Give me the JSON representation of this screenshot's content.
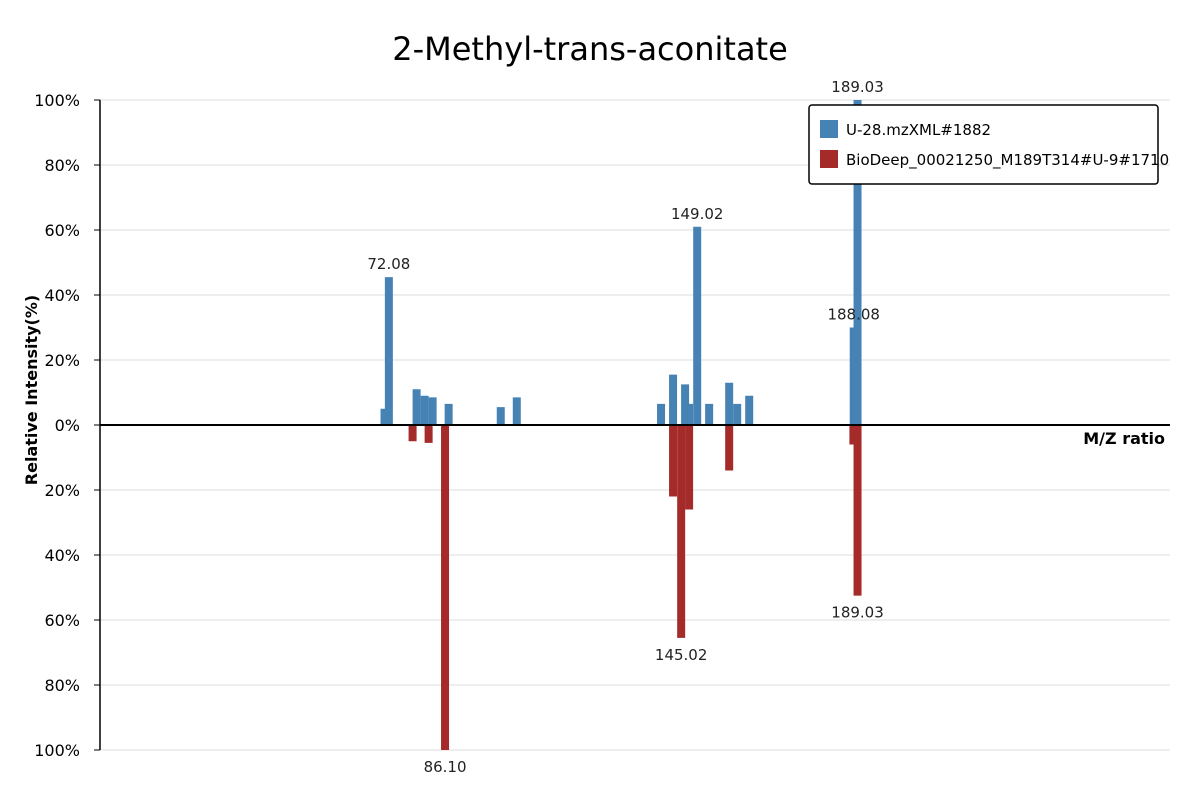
{
  "chart_data": {
    "type": "bar",
    "title": "2-Methyl-trans-aconitate",
    "xlabel": "M/Z ratio",
    "ylabel": "Relative Intensity(%)",
    "y_ticks_top": [
      "100%",
      "80%",
      "60%",
      "40%",
      "20%",
      "0%"
    ],
    "y_ticks_bottom": [
      "20%",
      "40%",
      "60%",
      "80%",
      "100%"
    ],
    "ylim": [
      -100,
      100
    ],
    "xlim": [
      0,
      267
    ],
    "grid": true,
    "legend_position": "top-right",
    "colors": {
      "top": "#4682B4",
      "bottom": "#A52A2A",
      "axis": "#000000",
      "grid": "#DCDCDC"
    },
    "series": [
      {
        "name": "U-28.mzXML#1882",
        "direction": "up",
        "mz": [
          71.0,
          72.08,
          79.0,
          81.0,
          83.0,
          87.0,
          100.0,
          104.0,
          140.0,
          143.0,
          146.0,
          147.0,
          149.02,
          152.0,
          157.0,
          159.0,
          162.0,
          188.08,
          189.03
        ],
        "intensity": [
          5,
          45.5,
          11,
          9,
          8.5,
          6.5,
          5.5,
          8.5,
          6.5,
          15.5,
          12.5,
          6.5,
          61,
          6.5,
          13,
          6.5,
          9,
          30,
          100
        ]
      },
      {
        "name": "BioDeep_00021250_M189T314#U-9#1710",
        "direction": "down",
        "mz": [
          78.0,
          86.1,
          82.0,
          143.0,
          145.02,
          147.0,
          157.0,
          188.0,
          189.03
        ],
        "intensity": [
          5,
          100,
          5.5,
          22,
          65.5,
          26,
          14,
          6,
          52.5
        ]
      }
    ],
    "peak_labels": [
      {
        "series": "U-28.mzXML#1882",
        "mz": 72.08,
        "text": "72.08"
      },
      {
        "series": "U-28.mzXML#1882",
        "mz": 149.02,
        "text": "149.02"
      },
      {
        "series": "U-28.mzXML#1882",
        "mz": 188.08,
        "text": "188.08"
      },
      {
        "series": "U-28.mzXML#1882",
        "mz": 189.03,
        "text": "189.03"
      },
      {
        "series": "BioDeep_00021250_M189T314#U-9#1710",
        "mz": 86.1,
        "text": "86.10"
      },
      {
        "series": "BioDeep_00021250_M189T314#U-9#1710",
        "mz": 145.02,
        "text": "145.02"
      },
      {
        "series": "BioDeep_00021250_M189T314#U-9#1710",
        "mz": 189.03,
        "text": "189.03"
      }
    ]
  }
}
